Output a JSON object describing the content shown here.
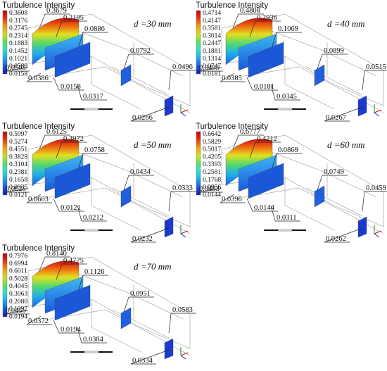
{
  "colorbar_title": "Turbulence Intensity",
  "colors": {
    "scale": [
      "#1020c8",
      "#1a55e0",
      "#22a8e8",
      "#30e0d0",
      "#5ae060",
      "#d0e020",
      "#f0a010",
      "#e83010",
      "#c00010"
    ],
    "plane_low": "#1a58d8",
    "plane_mid": "#2a90e8",
    "outline": "#9a9a9a"
  },
  "panels": [
    {
      "d_label": "d =30 mm",
      "ticks": [
        "0.3608",
        "0.3176",
        "0.2745",
        "0.2314",
        "0.1883",
        "0.1452",
        "0.1021",
        "0.0589",
        "0.0158"
      ],
      "callouts": [
        "0.3679",
        "0.2185",
        "0.0886",
        "0.0792",
        "0.0496",
        "0.0503",
        "0.0386",
        "0.0158",
        "0.0317",
        "0.0266"
      ]
    },
    {
      "d_label": "d =40 mm",
      "ticks": [
        "0.4714",
        "0.4147",
        "0.3581",
        "0.3014",
        "0.2447",
        "0.1881",
        "0.1314",
        "0.0747",
        "0.0181"
      ],
      "callouts": [
        "0.4808",
        "0.2936",
        "0.1069",
        "0.0899",
        "0.0515",
        "0.0495",
        "0.0385",
        "0.0181",
        "0.0345",
        "0.0267"
      ]
    },
    {
      "d_label": "d =50 mm",
      "ticks": [
        "0.5997",
        "0.5274",
        "0.4551",
        "0.3828",
        "0.3104",
        "0.2381",
        "0.1658",
        "0.0935",
        "0.0121"
      ],
      "callouts": [
        "0.6125",
        "0.3972",
        "0.0758",
        "0.0434",
        "0.0333",
        "0.0625",
        "0.0603",
        "0.0121",
        "0.0212",
        "0.0232"
      ]
    },
    {
      "d_label": "d =60 mm",
      "ticks": [
        "0.6642",
        "0.5829",
        "0.5017",
        "0.4205",
        "0.3393",
        "0.2581",
        "0.1768",
        "0.0956",
        "0.0144"
      ],
      "callouts": [
        "0.6777",
        "0.4212",
        "0.0869",
        "0.0749",
        "0.0459",
        "0.0483",
        "0.0396",
        "0.0144",
        "0.0311",
        "0.0262"
      ]
    },
    {
      "d_label": "d =70 mm",
      "ticks": [
        "0.7976",
        "0.6994",
        "0.6011",
        "0.5028",
        "0.4045",
        "0.3063",
        "0.2080",
        "0.1097",
        "0.0194"
      ],
      "callouts": [
        "0.8140",
        "0.4775",
        "0.1126",
        "0.0951",
        "0.0583",
        "0.0455",
        "0.0372",
        "0.0194",
        "0.0384",
        "0.0334"
      ]
    }
  ]
}
